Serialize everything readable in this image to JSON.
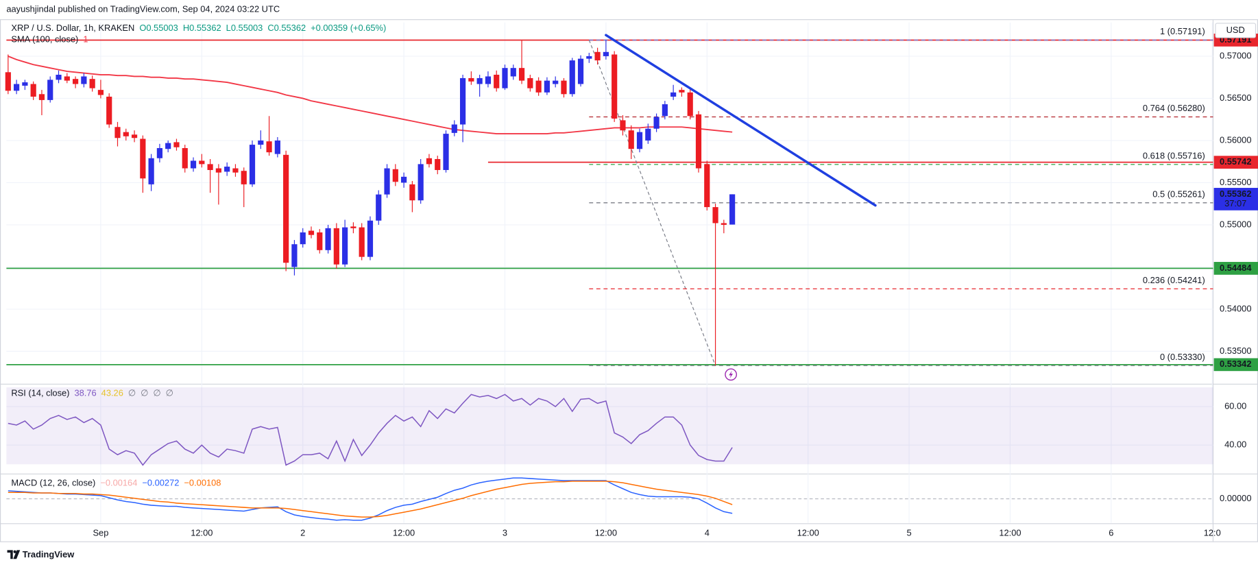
{
  "header": {
    "publisher": "aayushjindal published on TradingView.com, Sep 04, 2024 03:22 UTC"
  },
  "footer": {
    "brand": "TradingView"
  },
  "chart_data": [
    {
      "type": "candlestick",
      "title": "XRP / U.S. Dollar, 1h, KRAKEN",
      "legend_values": [
        {
          "text": "O0.55003",
          "color": "#089981"
        },
        {
          "text": "H0.55362",
          "color": "#089981"
        },
        {
          "text": "L0.55003",
          "color": "#089981"
        },
        {
          "text": "C0.55362",
          "color": "#089981"
        },
        {
          "text": "+0.00359 (+0.65%)",
          "color": "#089981"
        }
      ],
      "currency": "USD",
      "up_color": "#2b2fe6",
      "down_color": "#ec1c22",
      "open": [
        0.5681,
        0.5659,
        0.5665,
        0.5667,
        0.5655,
        0.5648,
        0.5672,
        0.5676,
        0.5673,
        0.5667,
        0.5673,
        0.566,
        0.5652,
        0.5616,
        0.561,
        0.5607,
        0.5602,
        0.5548,
        0.5579,
        0.559,
        0.5598,
        0.5591,
        0.5567,
        0.5576,
        0.5572,
        0.5567,
        0.5563,
        0.5567,
        0.5564,
        0.5548,
        0.5595,
        0.5599,
        0.5584,
        0.5583,
        0.545,
        0.5477,
        0.5493,
        0.5491,
        0.547,
        0.5496,
        0.5453,
        0.5498,
        0.5497,
        0.5462,
        0.5505,
        0.5536,
        0.5566,
        0.555,
        0.5548,
        0.5529,
        0.5579,
        0.5578,
        0.5565,
        0.5609,
        0.5619,
        0.5674,
        0.5667,
        0.5667,
        0.5678,
        0.5662,
        0.5676,
        0.5686,
        0.5674,
        0.5671,
        0.5657,
        0.5667,
        0.5671,
        0.5655,
        0.5667,
        0.5697,
        0.5705,
        0.57,
        0.5702,
        0.5624,
        0.5612,
        0.559,
        0.56,
        0.5614,
        0.5629,
        0.5652,
        0.566,
        0.5657,
        0.5631,
        0.5572,
        0.5521,
        0.5502,
        0.55003
      ],
      "high": [
        0.5702,
        0.5672,
        0.5672,
        0.567,
        0.566,
        0.5676,
        0.5683,
        0.568,
        0.5676,
        0.568,
        0.5677,
        0.5672,
        0.5656,
        0.5622,
        0.5614,
        0.5612,
        0.5606,
        0.5584,
        0.5596,
        0.56,
        0.5602,
        0.5595,
        0.558,
        0.5584,
        0.5578,
        0.5572,
        0.5574,
        0.5572,
        0.5568,
        0.56,
        0.5612,
        0.5629,
        0.5604,
        0.5588,
        0.5482,
        0.5496,
        0.5498,
        0.5495,
        0.55,
        0.5502,
        0.5506,
        0.5503,
        0.5502,
        0.551,
        0.5541,
        0.5572,
        0.5572,
        0.5562,
        0.5552,
        0.5578,
        0.5584,
        0.5582,
        0.5612,
        0.5624,
        0.5678,
        0.5682,
        0.5678,
        0.5682,
        0.5683,
        0.569,
        0.569,
        0.5719,
        0.5678,
        0.5675,
        0.5675,
        0.5676,
        0.5674,
        0.5698,
        0.5701,
        0.5704,
        0.571,
        0.5719,
        0.5706,
        0.563,
        0.5618,
        0.5614,
        0.562,
        0.5632,
        0.5647,
        0.5666,
        0.5663,
        0.5661,
        0.5635,
        0.5576,
        0.5525,
        0.5506,
        0.55362
      ],
      "low": [
        0.5655,
        0.5655,
        0.566,
        0.5648,
        0.563,
        0.5645,
        0.5668,
        0.5668,
        0.5662,
        0.5663,
        0.5658,
        0.565,
        0.5615,
        0.5593,
        0.56,
        0.5598,
        0.5538,
        0.554,
        0.5574,
        0.5586,
        0.5588,
        0.5562,
        0.5563,
        0.5568,
        0.5538,
        0.5524,
        0.5558,
        0.5557,
        0.5521,
        0.5545,
        0.559,
        0.5582,
        0.558,
        0.5445,
        0.544,
        0.5473,
        0.5484,
        0.5466,
        0.5466,
        0.5448,
        0.545,
        0.549,
        0.5458,
        0.5458,
        0.55,
        0.5532,
        0.5546,
        0.5544,
        0.5515,
        0.5525,
        0.5568,
        0.556,
        0.5562,
        0.5605,
        0.5598,
        0.5666,
        0.5652,
        0.5663,
        0.5658,
        0.566,
        0.5672,
        0.5667,
        0.5658,
        0.5653,
        0.5654,
        0.5663,
        0.5651,
        0.5652,
        0.5664,
        0.5692,
        0.569,
        0.5696,
        0.5622,
        0.5606,
        0.5578,
        0.5586,
        0.5596,
        0.561,
        0.5625,
        0.5648,
        0.5652,
        0.5625,
        0.5562,
        0.5517,
        0.5333,
        0.549,
        0.55003
      ],
      "close": [
        0.5659,
        0.5667,
        0.5669,
        0.5652,
        0.5648,
        0.5672,
        0.5678,
        0.5671,
        0.5667,
        0.5676,
        0.5662,
        0.5654,
        0.5619,
        0.5603,
        0.5605,
        0.5603,
        0.5555,
        0.5579,
        0.5591,
        0.5597,
        0.5592,
        0.5567,
        0.5576,
        0.5572,
        0.5565,
        0.5562,
        0.5569,
        0.5562,
        0.5548,
        0.5595,
        0.56,
        0.5586,
        0.56,
        0.5455,
        0.5477,
        0.5491,
        0.5488,
        0.547,
        0.5496,
        0.5453,
        0.5497,
        0.5496,
        0.5462,
        0.5505,
        0.5536,
        0.5567,
        0.5551,
        0.5557,
        0.5529,
        0.5572,
        0.5572,
        0.5565,
        0.5608,
        0.5619,
        0.5674,
        0.567,
        0.5674,
        0.5676,
        0.5662,
        0.5686,
        0.5686,
        0.5671,
        0.5662,
        0.5657,
        0.5671,
        0.5671,
        0.5655,
        0.5695,
        0.5697,
        0.57,
        0.5695,
        0.5705,
        0.5626,
        0.5612,
        0.559,
        0.561,
        0.5614,
        0.5628,
        0.5643,
        0.5657,
        0.5657,
        0.5629,
        0.5567,
        0.5521,
        0.5502,
        0.55,
        0.55362
      ],
      "xlim": [
        -0.2,
        143.1
      ],
      "xticks": [
        {
          "value": 11,
          "label": "Sep"
        },
        {
          "value": 23,
          "label": "12:00"
        },
        {
          "value": 35,
          "label": "2"
        },
        {
          "value": 47,
          "label": "12:00"
        },
        {
          "value": 59,
          "label": "3"
        },
        {
          "value": 71,
          "label": "12:00"
        },
        {
          "value": 83,
          "label": "4"
        },
        {
          "value": 95,
          "label": "12:00"
        },
        {
          "value": 107,
          "label": "5"
        },
        {
          "value": 119,
          "label": "12:00"
        },
        {
          "value": 131,
          "label": "6"
        },
        {
          "value": 143,
          "label": "12:0"
        }
      ],
      "ylim": [
        0.5312,
        0.574
      ],
      "yticks": [
        {
          "value": 0.57,
          "label": "0.57000"
        },
        {
          "value": 0.565,
          "label": "0.56500"
        },
        {
          "value": 0.56,
          "label": "0.56000"
        },
        {
          "value": 0.555,
          "label": "0.55500"
        },
        {
          "value": 0.55,
          "label": "0.55000"
        },
        {
          "value": 0.545,
          "label": "0.54500"
        },
        {
          "value": 0.54,
          "label": "0.54000"
        },
        {
          "value": 0.535,
          "label": "0.53500"
        }
      ],
      "grid": true,
      "overlays": [
        {
          "name": "SMA (100, close)",
          "legend_value": "1",
          "color": "#f23645",
          "values": [
            0.57,
            0.5696,
            0.5693,
            0.569,
            0.5688,
            0.5686,
            0.5684,
            0.5682,
            0.5681,
            0.568,
            0.5679,
            0.5678,
            0.5678,
            0.5677,
            0.5677,
            0.5676,
            0.5676,
            0.5675,
            0.5675,
            0.5674,
            0.5674,
            0.5673,
            0.5673,
            0.5672,
            0.5671,
            0.567,
            0.5669,
            0.5667,
            0.5665,
            0.5663,
            0.5661,
            0.5659,
            0.5657,
            0.5654,
            0.5652,
            0.565,
            0.5647,
            0.5645,
            0.5643,
            0.5641,
            0.5639,
            0.5637,
            0.5635,
            0.5633,
            0.5631,
            0.5629,
            0.5627,
            0.5625,
            0.5623,
            0.5621,
            0.5619,
            0.5617,
            0.5615,
            0.5613,
            0.5612,
            0.5611,
            0.561,
            0.5609,
            0.5608,
            0.5608,
            0.5608,
            0.5608,
            0.5608,
            0.5608,
            0.5608,
            0.5609,
            0.5609,
            0.561,
            0.5611,
            0.5612,
            0.5613,
            0.5614,
            0.5615,
            0.5615,
            0.5615,
            0.5615,
            0.5616,
            0.5616,
            0.5616,
            0.5616,
            0.5616,
            0.5615,
            0.5614,
            0.5613,
            0.5612,
            0.5611,
            0.561
          ]
        }
      ],
      "levels": [
        {
          "value": 0.57191,
          "label": "0.57191",
          "color": "#e8262d",
          "x_start": -0.2
        },
        {
          "value": 0.55742,
          "label": "0.55742",
          "color": "#e8262d",
          "x_start": 57
        },
        {
          "value": 0.54484,
          "label": "0.54484",
          "color": "#2ea043",
          "x_start": -0.2
        },
        {
          "value": 0.53342,
          "label": "0.53342",
          "color": "#2ea043",
          "x_start": -0.2
        }
      ],
      "fib": {
        "x_start": 69,
        "anchor": {
          "x": [
            69,
            84
          ],
          "y": [
            0.57191,
            0.5333
          ]
        },
        "levels": [
          {
            "value": 0.57191,
            "label": "1 (0.57191)",
            "color": "#5b7ee8"
          },
          {
            "value": 0.5628,
            "label": "0.764 (0.56280)",
            "color": "#b2222a"
          },
          {
            "value": 0.55716,
            "label": "0.618 (0.55716)",
            "color": "#2ea043"
          },
          {
            "value": 0.55261,
            "label": "0.5 (0.55261)",
            "color": "#5d606b"
          },
          {
            "value": 0.54241,
            "label": "0.236 (0.54241)",
            "color": "#e8262d"
          },
          {
            "value": 0.5333,
            "label": "0 (0.53330)",
            "color": "#787b86"
          }
        ]
      },
      "trendline": {
        "x": [
          71,
          103
        ],
        "y": [
          0.5725,
          0.5523
        ],
        "color": "#1f3fe0"
      },
      "price_tag": {
        "value": 0.55362,
        "label": "0.55362",
        "countdown": "37:07",
        "color": "#2b2fe6"
      }
    },
    {
      "type": "line",
      "title": "RSI (14, close)",
      "legend_values": [
        {
          "text": "38.76",
          "color": "#7e57c2"
        },
        {
          "text": "43.26",
          "color": "#e6c229"
        },
        {
          "text": "∅",
          "color": "#787b86"
        },
        {
          "text": "∅",
          "color": "#787b86"
        },
        {
          "text": "∅",
          "color": "#787b86"
        },
        {
          "text": "∅",
          "color": "#787b86"
        }
      ],
      "band": [
        30,
        70
      ],
      "band_color": "#7e57c2",
      "series": [
        {
          "color": "#7e57c2",
          "values": [
            51.3,
            50.4,
            52.5,
            48.3,
            50.4,
            53.8,
            55.4,
            53.3,
            54.6,
            51.7,
            53.8,
            50.4,
            37.9,
            35.0,
            37.1,
            35.8,
            29.6,
            35.0,
            37.9,
            40.8,
            42.1,
            37.9,
            35.8,
            40.0,
            35.8,
            33.8,
            37.9,
            37.1,
            35.8,
            48.3,
            49.6,
            48.3,
            49.2,
            29.6,
            31.7,
            35.0,
            35.0,
            35.8,
            32.9,
            42.1,
            31.7,
            42.9,
            34.6,
            40.0,
            46.3,
            51.3,
            55.4,
            52.5,
            54.6,
            49.6,
            57.9,
            53.8,
            58.8,
            56.7,
            61.7,
            66.3,
            65.0,
            65.8,
            64.2,
            66.3,
            62.9,
            64.2,
            60.8,
            64.2,
            62.9,
            60.0,
            64.2,
            57.5,
            63.8,
            64.2,
            61.7,
            62.9,
            46.3,
            44.2,
            40.8,
            45.4,
            47.5,
            51.3,
            54.6,
            54.6,
            50.4,
            40.0,
            34.6,
            32.5,
            31.7,
            31.7,
            38.76
          ]
        }
      ],
      "ylim": [
        25.4,
        71.25
      ],
      "yticks": [
        {
          "value": 60,
          "label": "60.00"
        },
        {
          "value": 40,
          "label": "40.00"
        }
      ]
    },
    {
      "type": "line",
      "title": "MACD (12, 26, close)",
      "legend_values": [
        {
          "text": "−0.00164",
          "color": "#f7a9a8"
        },
        {
          "text": "−0.00272",
          "color": "#2962ff"
        },
        {
          "text": "−0.00108",
          "color": "#ff6d00"
        }
      ],
      "series": [
        {
          "color": "#2962ff",
          "values": [
            0.0015,
            0.0014,
            0.0013,
            0.0012,
            0.0011,
            0.0011,
            0.001,
            0.0009,
            0.0009,
            0.0008,
            0.0007,
            0.0006,
            0.0002,
            -0.0002,
            -0.0005,
            -0.0007,
            -0.001,
            -0.0012,
            -0.0013,
            -0.0014,
            -0.0014,
            -0.0016,
            -0.0017,
            -0.0018,
            -0.0019,
            -0.002,
            -0.0021,
            -0.0022,
            -0.0023,
            -0.002,
            -0.0017,
            -0.0016,
            -0.0015,
            -0.0024,
            -0.003,
            -0.0033,
            -0.0035,
            -0.0037,
            -0.0038,
            -0.004,
            -0.0039,
            -0.004,
            -0.004,
            -0.0036,
            -0.003,
            -0.0022,
            -0.0016,
            -0.0012,
            -0.001,
            -0.0005,
            -0.0001,
            0.0003,
            0.001,
            0.0016,
            0.002,
            0.0026,
            0.003,
            0.0033,
            0.0035,
            0.0037,
            0.0039,
            0.0039,
            0.0038,
            0.0037,
            0.0036,
            0.0035,
            0.0034,
            0.0034,
            0.0034,
            0.0034,
            0.0034,
            0.0034,
            0.0026,
            0.0019,
            0.0012,
            0.0008,
            0.0005,
            0.0004,
            0.0004,
            0.0004,
            0.0004,
            0.0003,
            0.0,
            -0.0008,
            -0.0017,
            -0.0024,
            -0.00272
          ]
        },
        {
          "color": "#ff6d00",
          "values": [
            0.0012,
            0.0012,
            0.0012,
            0.0011,
            0.0011,
            0.0011,
            0.001,
            0.001,
            0.001,
            0.0009,
            0.0009,
            0.0008,
            0.0007,
            0.0005,
            0.0003,
            0.0001,
            -0.0001,
            -0.0003,
            -0.0005,
            -0.0006,
            -0.0008,
            -0.0009,
            -0.001,
            -0.0011,
            -0.0012,
            -0.0013,
            -0.0014,
            -0.0015,
            -0.0016,
            -0.0017,
            -0.0017,
            -0.0017,
            -0.0017,
            -0.0018,
            -0.002,
            -0.0022,
            -0.0024,
            -0.0026,
            -0.0028,
            -0.003,
            -0.0032,
            -0.0033,
            -0.0034,
            -0.0034,
            -0.0033,
            -0.0031,
            -0.0028,
            -0.0025,
            -0.0022,
            -0.0019,
            -0.0015,
            -0.0011,
            -0.0007,
            -0.0003,
            0.0001,
            0.0006,
            0.001,
            0.0014,
            0.0018,
            0.0021,
            0.0024,
            0.0027,
            0.0029,
            0.003,
            0.0031,
            0.0032,
            0.0032,
            0.0033,
            0.0033,
            0.0033,
            0.0033,
            0.0033,
            0.0032,
            0.003,
            0.0027,
            0.0024,
            0.0021,
            0.0018,
            0.0016,
            0.0014,
            0.0012,
            0.001,
            0.0008,
            0.0005,
            0.0001,
            -0.0005,
            -0.00108
          ]
        }
      ],
      "ylim": [
        -0.0045,
        0.0045
      ],
      "yticks": [
        {
          "value": 0,
          "label": "0.00000"
        }
      ]
    }
  ]
}
